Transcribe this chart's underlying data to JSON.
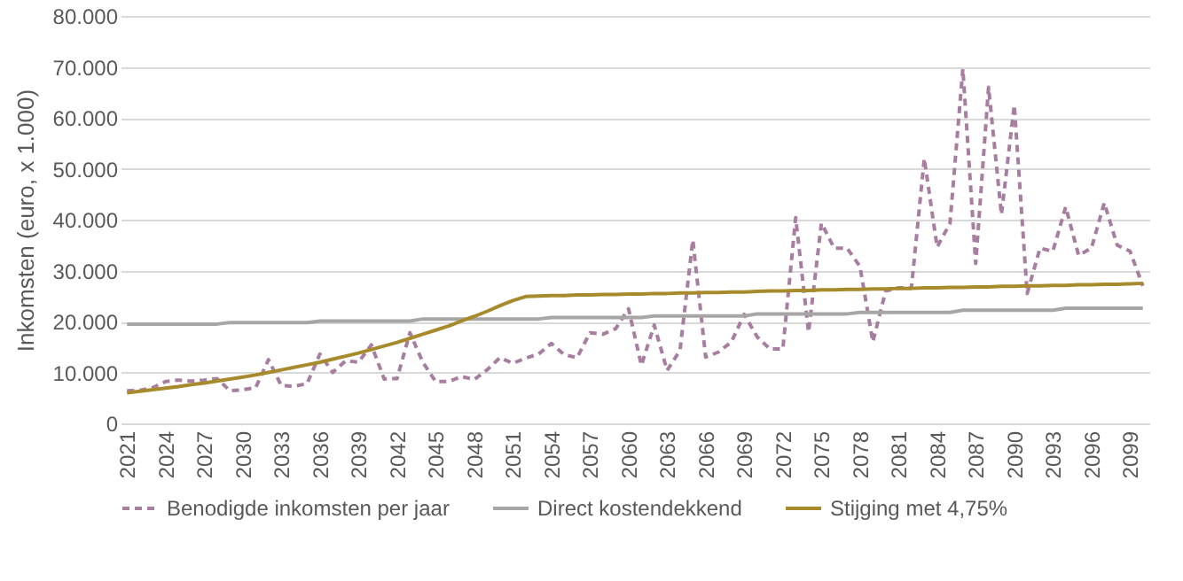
{
  "chart_data": {
    "type": "line",
    "ylabel": "Inkomsten (euro, x 1.000)",
    "categories": [
      "2021",
      null,
      null,
      "2024",
      null,
      null,
      "2027",
      null,
      null,
      "2030",
      null,
      null,
      "2033",
      null,
      null,
      "2036",
      null,
      null,
      "2039",
      null,
      null,
      "2042",
      null,
      null,
      "2045",
      null,
      null,
      "2048",
      null,
      null,
      "2051",
      null,
      null,
      "2054",
      null,
      null,
      "2057",
      null,
      null,
      "2060",
      null,
      null,
      "2063",
      null,
      null,
      "2066",
      null,
      null,
      "2069",
      null,
      null,
      "2072",
      null,
      null,
      "2075",
      null,
      null,
      "2078",
      null,
      null,
      "2081",
      null,
      null,
      "2084",
      null,
      null,
      "2087",
      null,
      null,
      "2090",
      null,
      null,
      "2093",
      null,
      null,
      "2096",
      null,
      null,
      "2099",
      null
    ],
    "ylim": [
      0,
      80000
    ],
    "yticks": [
      {
        "value": 0,
        "label": "0"
      },
      {
        "value": 10000,
        "label": "10.000"
      },
      {
        "value": 20000,
        "label": "20.000"
      },
      {
        "value": 30000,
        "label": "30.000"
      },
      {
        "value": 40000,
        "label": "40.000"
      },
      {
        "value": 50000,
        "label": "50.000"
      },
      {
        "value": 60000,
        "label": "60.000"
      },
      {
        "value": 70000,
        "label": "70.000"
      },
      {
        "value": 80000,
        "label": "80.000"
      }
    ],
    "grid": "y",
    "legend": "bottom",
    "marker": "none",
    "series": [
      {
        "name": "Benodigde inkomsten per jaar",
        "color": "#a87ea0",
        "line_style": "dashed",
        "values": [
          6400,
          6500,
          7000,
          8200,
          8500,
          8300,
          8500,
          8800,
          6400,
          6600,
          7000,
          12500,
          7400,
          7300,
          7800,
          13600,
          10000,
          12300,
          12000,
          15400,
          8700,
          8800,
          17800,
          12000,
          8200,
          8200,
          9200,
          8600,
          10500,
          12900,
          11800,
          12800,
          13600,
          15700,
          13500,
          12900,
          17800,
          17500,
          18600,
          22500,
          11400,
          19300,
          10400,
          14300,
          36000,
          13000,
          14000,
          16000,
          21400,
          17000,
          14600,
          14600,
          40400,
          17900,
          39300,
          34400,
          34400,
          30800,
          16000,
          26000,
          26600,
          26600,
          52000,
          34600,
          39300,
          69600,
          31400,
          66000,
          41000,
          62500,
          25500,
          34400,
          33800,
          42500,
          33000,
          34400,
          43300,
          35000,
          33800,
          27000
        ]
      },
      {
        "name": "Direct kostendekkend",
        "color": "#a6a6a6",
        "line_style": "solid",
        "values": [
          19500,
          19500,
          19500,
          19500,
          19500,
          19500,
          19500,
          19500,
          19800,
          19800,
          19800,
          19800,
          19800,
          19800,
          19800,
          20100,
          20100,
          20100,
          20100,
          20100,
          20100,
          20100,
          20100,
          20500,
          20500,
          20500,
          20500,
          20500,
          20500,
          20500,
          20500,
          20500,
          20500,
          20800,
          20800,
          20800,
          20800,
          20800,
          20800,
          20800,
          20800,
          21100,
          21100,
          21100,
          21100,
          21100,
          21100,
          21100,
          21100,
          21500,
          21500,
          21500,
          21500,
          21500,
          21500,
          21500,
          21500,
          21800,
          21800,
          21800,
          21800,
          21800,
          21800,
          21800,
          21800,
          22200,
          22200,
          22200,
          22200,
          22200,
          22200,
          22200,
          22200,
          22600,
          22600,
          22600,
          22600,
          22600,
          22600,
          22600
        ]
      },
      {
        "name": "Stijging met 4,75%",
        "color": "#a68a2c",
        "line_style": "solid",
        "values": [
          6000,
          6300,
          6600,
          6900,
          7200,
          7600,
          7900,
          8300,
          8700,
          9100,
          9500,
          10000,
          10500,
          11000,
          11500,
          12000,
          12600,
          13200,
          13800,
          14500,
          15200,
          15900,
          16700,
          17500,
          18300,
          19100,
          20100,
          21000,
          22000,
          23100,
          24100,
          24900,
          25000,
          25100,
          25100,
          25200,
          25200,
          25300,
          25300,
          25400,
          25400,
          25500,
          25500,
          25600,
          25600,
          25700,
          25700,
          25800,
          25800,
          25900,
          26000,
          26000,
          26100,
          26100,
          26200,
          26200,
          26300,
          26300,
          26400,
          26400,
          26500,
          26500,
          26600,
          26600,
          26700,
          26700,
          26800,
          26800,
          26900,
          26900,
          27000,
          27000,
          27100,
          27100,
          27200,
          27200,
          27300,
          27300,
          27400,
          27500
        ]
      }
    ]
  }
}
